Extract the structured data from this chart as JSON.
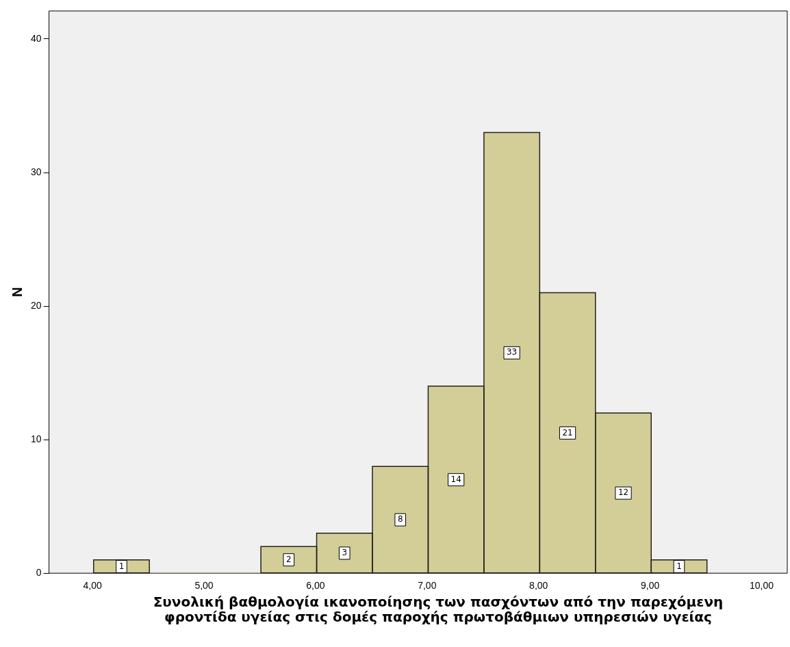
{
  "chart_data": {
    "type": "histogram",
    "xlabel": "Συνολική βαθμολογία ικανοποίησης των πασχόντων από την παρεχόμενη φροντίδα υγείας στις δομές παροχής πρωτοβάθμιων υπηρεσιών υγείας",
    "ylabel": "N",
    "bins": [
      4.01,
      4.51,
      5.01,
      5.51,
      6.01,
      6.51,
      7.01,
      7.51,
      8.01,
      8.51,
      9.01,
      9.51
    ],
    "values": [
      1,
      0,
      0,
      2,
      3,
      8,
      14,
      33,
      21,
      12,
      1
    ],
    "value_labels": [
      "1",
      null,
      null,
      "2",
      "3",
      "8",
      "14",
      "33",
      "21",
      "12",
      "1"
    ],
    "color": "#d3ce97",
    "xlim": [
      3.61,
      10.23
    ],
    "ylim": [
      0,
      42.1
    ],
    "xticks": [
      {
        "value": 4,
        "label": "4,00"
      },
      {
        "value": 5,
        "label": "5,00"
      },
      {
        "value": 6,
        "label": "6,00"
      },
      {
        "value": 7,
        "label": "7,00"
      },
      {
        "value": 8,
        "label": "8,00"
      },
      {
        "value": 9,
        "label": "9,00"
      },
      {
        "value": 10,
        "label": "10,00"
      }
    ],
    "yticks": [
      0,
      10,
      20,
      30,
      40
    ],
    "grid": false,
    "legend": false
  }
}
